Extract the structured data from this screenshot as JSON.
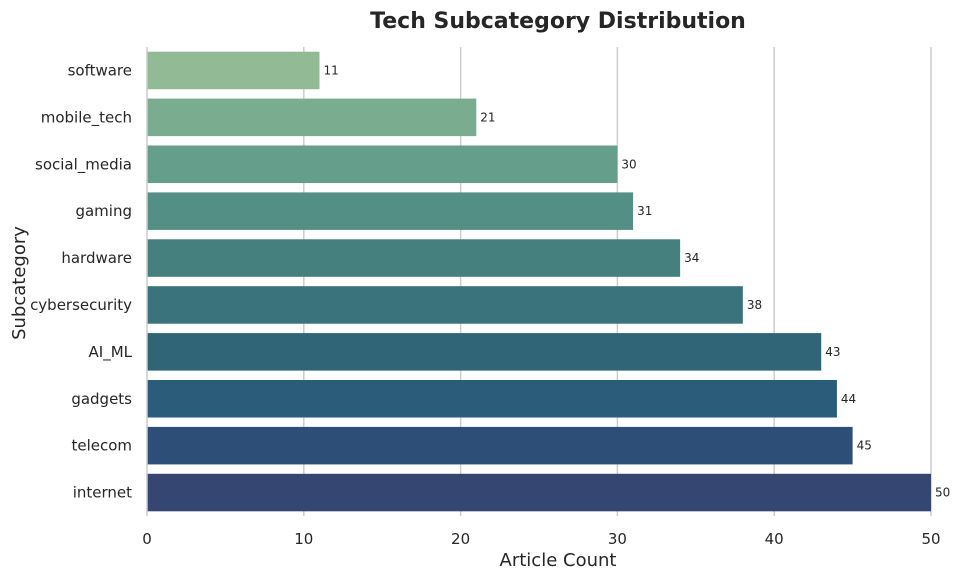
{
  "chart_data": {
    "type": "bar",
    "orientation": "horizontal",
    "title": "Tech Subcategory Distribution",
    "xlabel": "Article Count",
    "ylabel": "Subcategory",
    "categories": [
      "software",
      "mobile_tech",
      "social_media",
      "gaming",
      "hardware",
      "cybersecurity",
      "AI_ML",
      "gadgets",
      "telecom",
      "internet"
    ],
    "values": [
      11,
      21,
      30,
      31,
      34,
      38,
      43,
      44,
      45,
      50
    ],
    "data_labels": [
      "11",
      "21",
      "30",
      "31",
      "34",
      "38",
      "43",
      "44",
      "45",
      "50"
    ],
    "xlim": [
      0,
      50
    ],
    "xticks": [
      0,
      10,
      20,
      30,
      40,
      50
    ],
    "xtick_labels": [
      "0",
      "10",
      "20",
      "30",
      "40",
      "50"
    ],
    "grid": "vertical",
    "colors": [
      "#92ba94",
      "#7aad90",
      "#659e8a",
      "#538f84",
      "#45807f",
      "#3a737c",
      "#2f6577",
      "#2b5c7a",
      "#2d4f77",
      "#364673"
    ]
  }
}
